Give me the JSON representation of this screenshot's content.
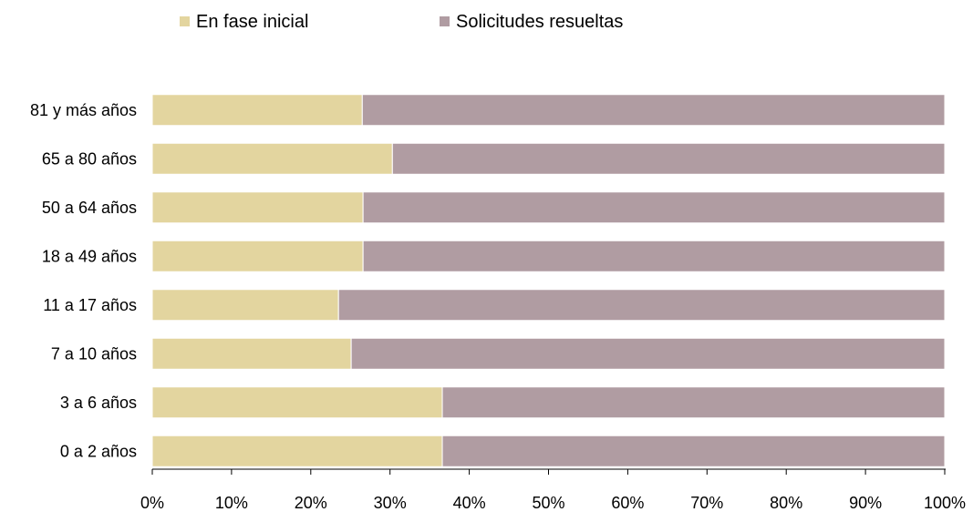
{
  "chart_data": {
    "type": "bar",
    "orientation": "horizontal",
    "stacked": true,
    "normalized": true,
    "categories": [
      "81 y más años",
      "65 a 80 años",
      "50 a 64 años",
      "18 a 49 años",
      "11 a 17 años",
      "7 a 10 años",
      "3 a 6 años",
      "0 a 2 años"
    ],
    "series": [
      {
        "name": "En fase inicial",
        "color": "#e3d59f",
        "values": [
          26.5,
          30.3,
          26.6,
          26.6,
          23.5,
          25.1,
          36.6,
          36.6
        ]
      },
      {
        "name": "Solicitudes resueltas",
        "color": "#b09ca2",
        "values": [
          73.5,
          69.7,
          73.4,
          73.4,
          76.5,
          74.9,
          63.4,
          63.4
        ]
      }
    ],
    "xlim": [
      0,
      100
    ],
    "x_ticks": [
      "0%",
      "10%",
      "20%",
      "30%",
      "40%",
      "50%",
      "60%",
      "70%",
      "80%",
      "90%",
      "100%"
    ],
    "grid": false,
    "legend_position": "top"
  }
}
